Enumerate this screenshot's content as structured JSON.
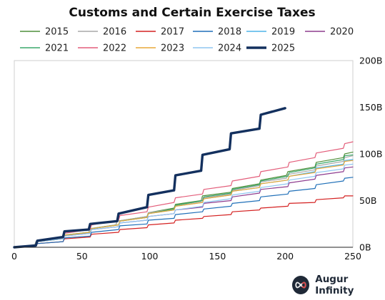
{
  "chart_data": {
    "type": "line",
    "title": "Customs and Certain Exercise Taxes",
    "xlabel": "",
    "ylabel": "",
    "xlim": [
      0,
      250
    ],
    "ylim": [
      0,
      200
    ],
    "x_ticks": [
      0,
      50,
      100,
      150,
      200,
      250
    ],
    "x_tick_labels": [
      "0",
      "50",
      "100",
      "150",
      "200",
      "250"
    ],
    "y_ticks": [
      0,
      50,
      100,
      150,
      200
    ],
    "y_tick_labels": [
      "0B",
      "50B",
      "100B",
      "150B",
      "200B"
    ],
    "y_axis_side": "right",
    "grid": false,
    "legend_position": "top",
    "series": [
      {
        "name": "2015",
        "color": "#4f8f3a",
        "width": 1.2,
        "points": [
          [
            0,
            0
          ],
          [
            15,
            2
          ],
          [
            16,
            6
          ],
          [
            35,
            9
          ],
          [
            36,
            13
          ],
          [
            55,
            16
          ],
          [
            56,
            20
          ],
          [
            75,
            24
          ],
          [
            76,
            28
          ],
          [
            98,
            33
          ],
          [
            99,
            37
          ],
          [
            118,
            42
          ],
          [
            119,
            46
          ],
          [
            138,
            50
          ],
          [
            139,
            55
          ],
          [
            160,
            59
          ],
          [
            161,
            63
          ],
          [
            181,
            68
          ],
          [
            182,
            72
          ],
          [
            201,
            77
          ],
          [
            202,
            81
          ],
          [
            222,
            86
          ],
          [
            223,
            91
          ],
          [
            243,
            96
          ],
          [
            244,
            100
          ],
          [
            250,
            102
          ]
        ]
      },
      {
        "name": "2016",
        "color": "#a8a8a8",
        "width": 1.2,
        "points": [
          [
            0,
            0
          ],
          [
            15,
            2
          ],
          [
            16,
            6
          ],
          [
            35,
            9
          ],
          [
            36,
            13
          ],
          [
            55,
            16
          ],
          [
            56,
            20
          ],
          [
            75,
            24
          ],
          [
            76,
            28
          ],
          [
            98,
            33
          ],
          [
            99,
            37
          ],
          [
            118,
            41
          ],
          [
            119,
            45
          ],
          [
            138,
            49
          ],
          [
            139,
            53
          ],
          [
            160,
            57
          ],
          [
            161,
            61
          ],
          [
            181,
            66
          ],
          [
            182,
            70
          ],
          [
            201,
            74
          ],
          [
            202,
            78
          ],
          [
            222,
            83
          ],
          [
            223,
            87
          ],
          [
            243,
            92
          ],
          [
            244,
            96
          ],
          [
            250,
            98
          ]
        ]
      },
      {
        "name": "2017",
        "color": "#d42020",
        "width": 1.2,
        "points": [
          [
            0,
            0
          ],
          [
            16,
            1
          ],
          [
            17,
            4
          ],
          [
            36,
            6
          ],
          [
            37,
            9
          ],
          [
            56,
            11
          ],
          [
            57,
            14
          ],
          [
            77,
            16
          ],
          [
            78,
            19
          ],
          [
            98,
            21
          ],
          [
            99,
            24
          ],
          [
            118,
            26
          ],
          [
            119,
            29
          ],
          [
            139,
            31
          ],
          [
            140,
            33
          ],
          [
            160,
            35
          ],
          [
            161,
            38
          ],
          [
            181,
            40
          ],
          [
            182,
            42
          ],
          [
            202,
            44
          ],
          [
            203,
            47
          ],
          [
            222,
            48
          ],
          [
            223,
            51
          ],
          [
            243,
            53
          ],
          [
            244,
            55
          ],
          [
            250,
            55
          ]
        ]
      },
      {
        "name": "2018",
        "color": "#1f6fb8",
        "width": 1.2,
        "points": [
          [
            0,
            0
          ],
          [
            16,
            1
          ],
          [
            17,
            4
          ],
          [
            36,
            6
          ],
          [
            37,
            10
          ],
          [
            56,
            12
          ],
          [
            57,
            16
          ],
          [
            77,
            19
          ],
          [
            78,
            23
          ],
          [
            98,
            25
          ],
          [
            99,
            29
          ],
          [
            118,
            31
          ],
          [
            119,
            35
          ],
          [
            139,
            38
          ],
          [
            140,
            41
          ],
          [
            160,
            44
          ],
          [
            161,
            47
          ],
          [
            181,
            50
          ],
          [
            182,
            54
          ],
          [
            202,
            57
          ],
          [
            203,
            60
          ],
          [
            222,
            63
          ],
          [
            223,
            67
          ],
          [
            243,
            71
          ],
          [
            244,
            74
          ],
          [
            250,
            75
          ]
        ]
      },
      {
        "name": "2019",
        "color": "#4fb3e8",
        "width": 1.2,
        "points": [
          [
            0,
            0
          ],
          [
            16,
            2
          ],
          [
            17,
            6
          ],
          [
            36,
            9
          ],
          [
            37,
            13
          ],
          [
            56,
            16
          ],
          [
            57,
            20
          ],
          [
            77,
            24
          ],
          [
            78,
            28
          ],
          [
            98,
            32
          ],
          [
            99,
            36
          ],
          [
            118,
            40
          ],
          [
            119,
            44
          ],
          [
            139,
            48
          ],
          [
            140,
            52
          ],
          [
            160,
            56
          ],
          [
            161,
            60
          ],
          [
            181,
            64
          ],
          [
            182,
            68
          ],
          [
            202,
            72
          ],
          [
            203,
            76
          ],
          [
            222,
            81
          ],
          [
            223,
            85
          ],
          [
            243,
            89
          ],
          [
            244,
            93
          ],
          [
            250,
            94
          ]
        ]
      },
      {
        "name": "2020",
        "color": "#8e3b8e",
        "width": 1.2,
        "points": [
          [
            0,
            0
          ],
          [
            16,
            2
          ],
          [
            17,
            6
          ],
          [
            36,
            9
          ],
          [
            37,
            12
          ],
          [
            56,
            15
          ],
          [
            57,
            19
          ],
          [
            77,
            22
          ],
          [
            78,
            26
          ],
          [
            98,
            29
          ],
          [
            99,
            33
          ],
          [
            118,
            36
          ],
          [
            119,
            40
          ],
          [
            139,
            43
          ],
          [
            140,
            47
          ],
          [
            160,
            50
          ],
          [
            161,
            54
          ],
          [
            181,
            58
          ],
          [
            182,
            62
          ],
          [
            202,
            65
          ],
          [
            203,
            69
          ],
          [
            222,
            73
          ],
          [
            223,
            77
          ],
          [
            243,
            81
          ],
          [
            244,
            85
          ],
          [
            250,
            86
          ]
        ]
      },
      {
        "name": "2021",
        "color": "#3aa86b",
        "width": 1.2,
        "points": [
          [
            0,
            0
          ],
          [
            16,
            2
          ],
          [
            17,
            6
          ],
          [
            36,
            9
          ],
          [
            37,
            13
          ],
          [
            56,
            16
          ],
          [
            57,
            20
          ],
          [
            77,
            24
          ],
          [
            78,
            28
          ],
          [
            98,
            32
          ],
          [
            99,
            36
          ],
          [
            118,
            41
          ],
          [
            119,
            45
          ],
          [
            139,
            50
          ],
          [
            140,
            54
          ],
          [
            160,
            58
          ],
          [
            161,
            62
          ],
          [
            181,
            67
          ],
          [
            182,
            71
          ],
          [
            202,
            76
          ],
          [
            203,
            80
          ],
          [
            222,
            85
          ],
          [
            223,
            89
          ],
          [
            243,
            94
          ],
          [
            244,
            98
          ],
          [
            250,
            99
          ]
        ]
      },
      {
        "name": "2022",
        "color": "#e35d7a",
        "width": 1.2,
        "points": [
          [
            0,
            0
          ],
          [
            16,
            2
          ],
          [
            17,
            6
          ],
          [
            36,
            10
          ],
          [
            37,
            15
          ],
          [
            56,
            19
          ],
          [
            57,
            24
          ],
          [
            77,
            29
          ],
          [
            78,
            34
          ],
          [
            98,
            38
          ],
          [
            99,
            43
          ],
          [
            118,
            48
          ],
          [
            119,
            53
          ],
          [
            139,
            57
          ],
          [
            140,
            62
          ],
          [
            160,
            66
          ],
          [
            161,
            71
          ],
          [
            181,
            76
          ],
          [
            182,
            81
          ],
          [
            202,
            86
          ],
          [
            203,
            91
          ],
          [
            222,
            96
          ],
          [
            223,
            101
          ],
          [
            243,
            106
          ],
          [
            244,
            111
          ],
          [
            250,
            113
          ]
        ]
      },
      {
        "name": "2023",
        "color": "#e8a838",
        "width": 1.2,
        "points": [
          [
            0,
            0
          ],
          [
            16,
            2
          ],
          [
            17,
            6
          ],
          [
            36,
            9
          ],
          [
            37,
            13
          ],
          [
            56,
            16
          ],
          [
            57,
            20
          ],
          [
            77,
            24
          ],
          [
            78,
            28
          ],
          [
            98,
            32
          ],
          [
            99,
            36
          ],
          [
            118,
            40
          ],
          [
            119,
            44
          ],
          [
            139,
            48
          ],
          [
            140,
            52
          ],
          [
            160,
            56
          ],
          [
            161,
            60
          ],
          [
            181,
            64
          ],
          [
            182,
            68
          ],
          [
            202,
            72
          ],
          [
            203,
            76
          ],
          [
            222,
            80
          ],
          [
            223,
            84
          ],
          [
            243,
            88
          ],
          [
            244,
            92
          ],
          [
            250,
            93
          ]
        ]
      },
      {
        "name": "2024",
        "color": "#8ec6f0",
        "width": 1.2,
        "points": [
          [
            0,
            0
          ],
          [
            16,
            2
          ],
          [
            17,
            6
          ],
          [
            36,
            9
          ],
          [
            37,
            12
          ],
          [
            56,
            15
          ],
          [
            57,
            19
          ],
          [
            77,
            22
          ],
          [
            78,
            26
          ],
          [
            98,
            29
          ],
          [
            99,
            33
          ],
          [
            118,
            36
          ],
          [
            119,
            40
          ],
          [
            139,
            44
          ],
          [
            140,
            48
          ],
          [
            160,
            52
          ],
          [
            161,
            56
          ],
          [
            181,
            60
          ],
          [
            182,
            64
          ],
          [
            202,
            68
          ],
          [
            203,
            72
          ],
          [
            222,
            76
          ],
          [
            223,
            80
          ],
          [
            243,
            84
          ],
          [
            244,
            88
          ],
          [
            250,
            89
          ]
        ]
      },
      {
        "name": "2025",
        "color": "#13305e",
        "width": 3.4,
        "points": [
          [
            0,
            0
          ],
          [
            16,
            2
          ],
          [
            17,
            7
          ],
          [
            36,
            11
          ],
          [
            37,
            17
          ],
          [
            55,
            19
          ],
          [
            56,
            25
          ],
          [
            76,
            28
          ],
          [
            77,
            36
          ],
          [
            98,
            43
          ],
          [
            99,
            56
          ],
          [
            118,
            61
          ],
          [
            119,
            77
          ],
          [
            138,
            82
          ],
          [
            139,
            99
          ],
          [
            159,
            105
          ],
          [
            160,
            122
          ],
          [
            181,
            127
          ],
          [
            182,
            142
          ],
          [
            200,
            149
          ]
        ]
      }
    ]
  },
  "brand": {
    "name": "Augur Infinity",
    "logo_icon": "infinity-icon"
  }
}
